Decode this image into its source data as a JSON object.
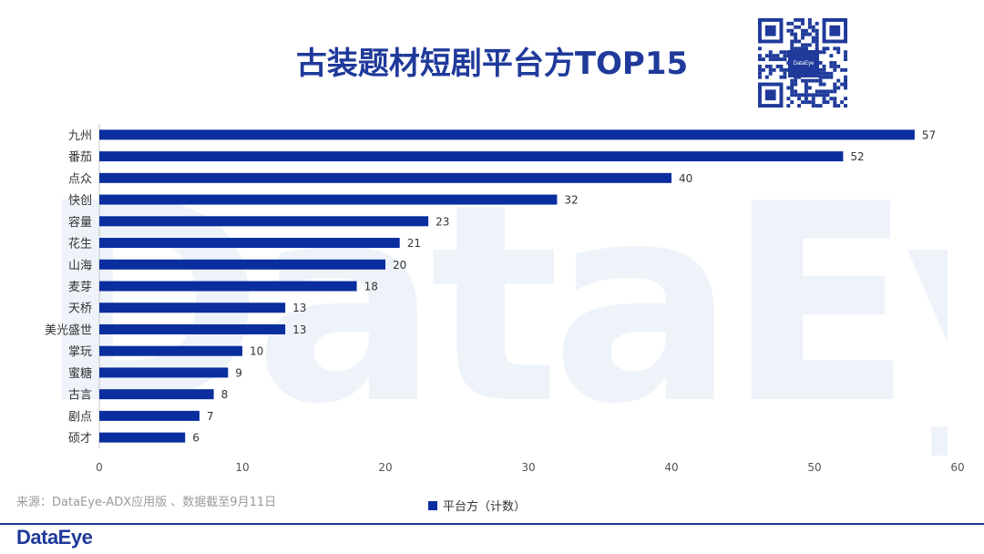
{
  "brand": {
    "accent": "#1f3a9a",
    "bar": "#0a2e9e",
    "logo_text": "DataEye",
    "watermark_text": "DataEye"
  },
  "title": "古装题材短剧平台方TOP15",
  "qr": {
    "logo_text": "DataEye"
  },
  "source": "来源：DataEye-ADX应用版 、数据截至9月11日",
  "legend": {
    "label": "平台方（计数）"
  },
  "chart_data": {
    "type": "bar",
    "orientation": "horizontal",
    "title": "古装题材短剧平台方TOP15",
    "categories": [
      "九州",
      "番茄",
      "点众",
      "快创",
      "容量",
      "花生",
      "山海",
      "麦芽",
      "天桥",
      "美光盛世",
      "掌玩",
      "蜜糖",
      "古言",
      "剧点",
      "硕才"
    ],
    "series": [
      {
        "name": "平台方（计数）",
        "values": [
          57,
          52,
          40,
          32,
          23,
          21,
          20,
          18,
          13,
          13,
          10,
          9,
          8,
          7,
          6
        ]
      }
    ],
    "xlim": [
      0,
      60
    ],
    "xticks": [
      0,
      10,
      20,
      30,
      40,
      50,
      60
    ],
    "xlabel": "",
    "ylabel": "",
    "grid": false,
    "legend_position": "bottom"
  }
}
